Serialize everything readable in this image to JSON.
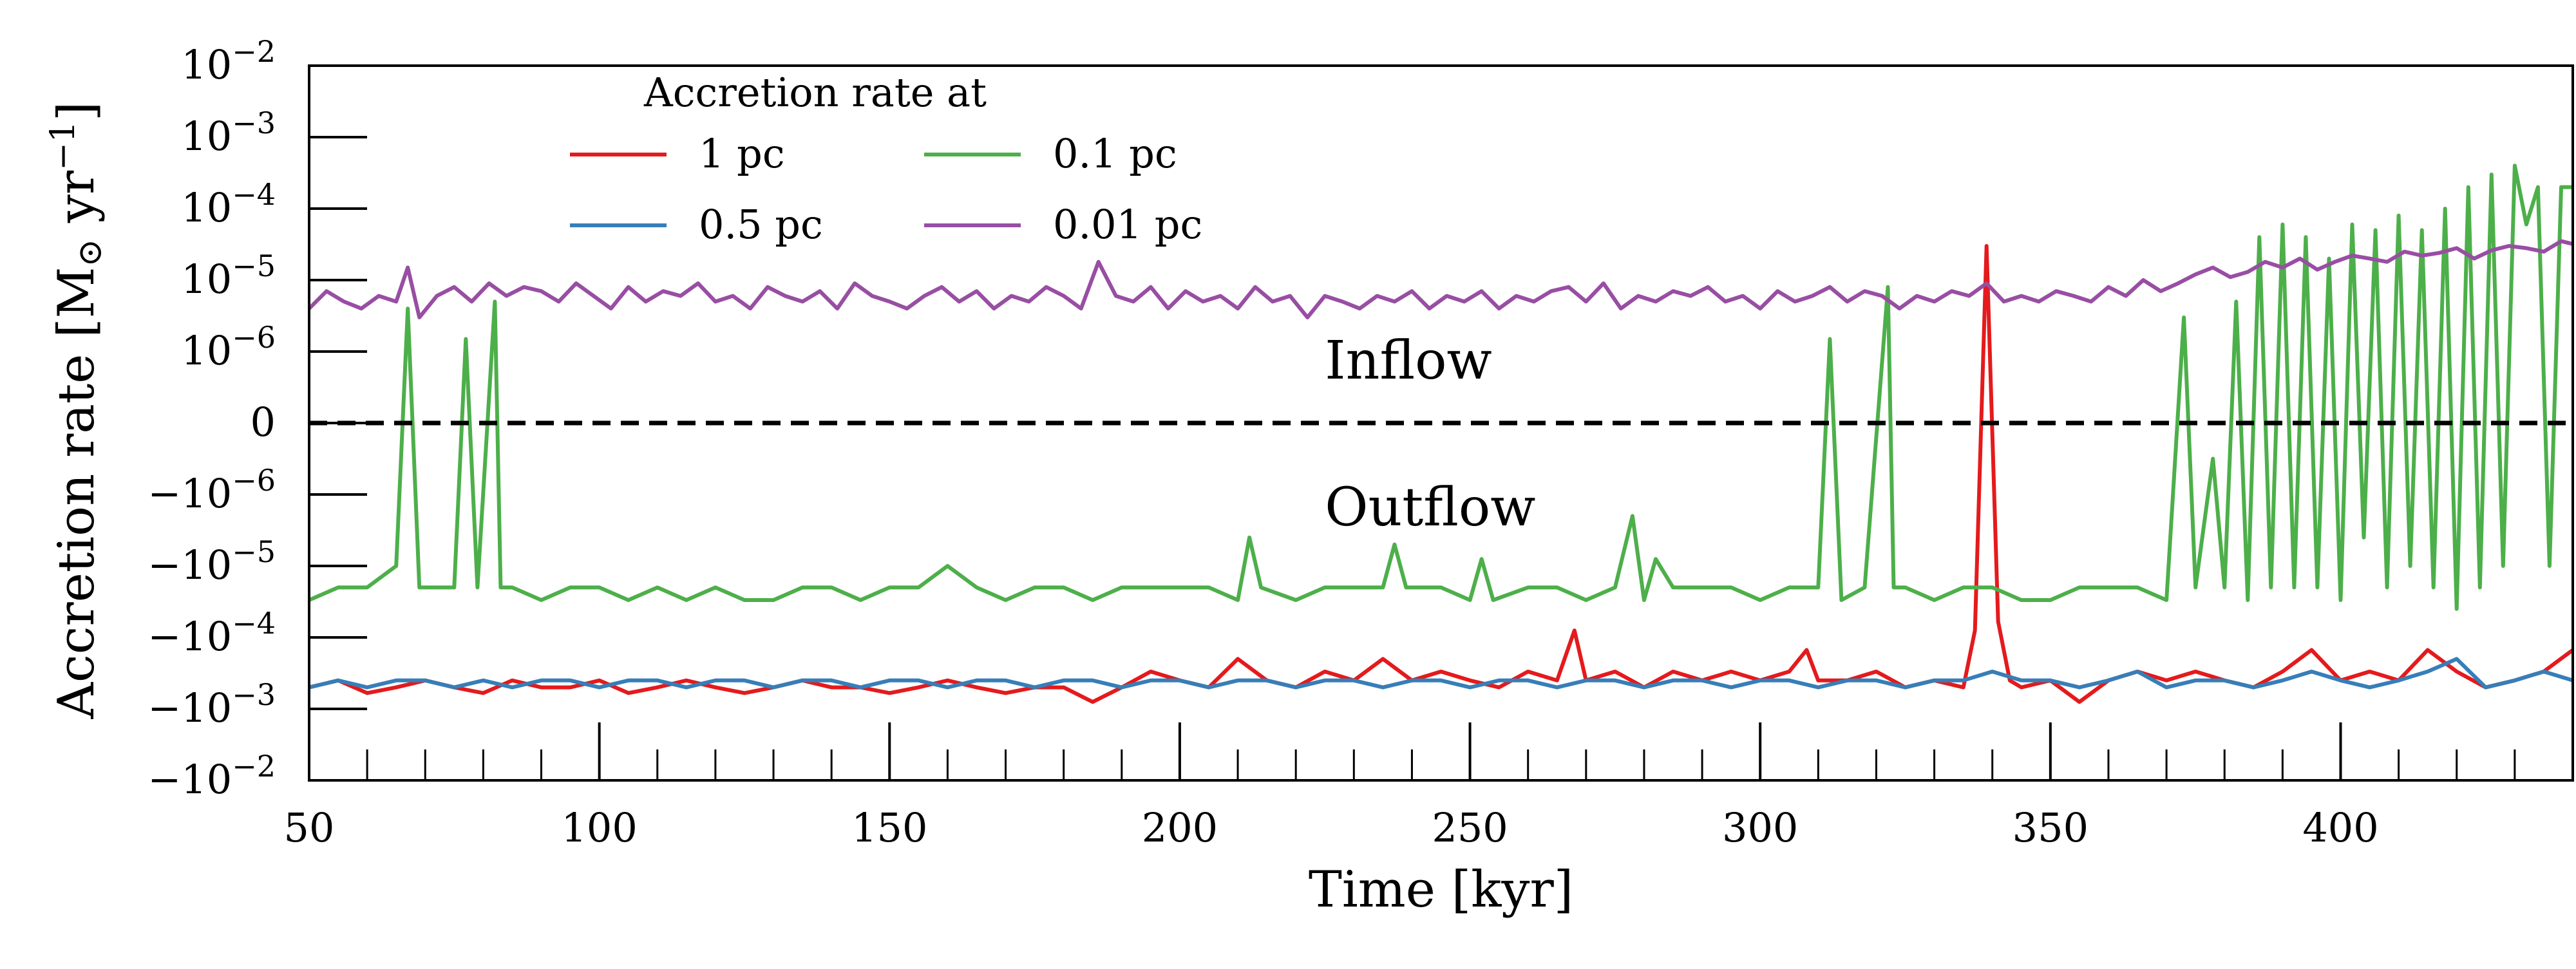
{
  "chart_data": {
    "type": "line",
    "title": "",
    "xlabel": "Time [kyr]",
    "ylabel_text": "Accretion rate [M",
    "ylabel_sub": "⊙",
    "ylabel_unit": " yr",
    "ylabel_exp": "−1",
    "ylabel_close": "]",
    "xlim": [
      50,
      440
    ],
    "x_ticks": [
      {
        "value": 50,
        "label": "50"
      },
      {
        "value": 100,
        "label": "100"
      },
      {
        "value": 150,
        "label": "150"
      },
      {
        "value": 200,
        "label": "200"
      },
      {
        "value": 250,
        "label": "250"
      },
      {
        "value": 300,
        "label": "300"
      },
      {
        "value": 350,
        "label": "350"
      },
      {
        "value": 400,
        "label": "400"
      }
    ],
    "y_scale": "symlog",
    "y_linthresh": 1e-06,
    "ylim": [
      -0.01,
      0.01
    ],
    "y_ticks": [
      {
        "value": 0.01,
        "base": "10",
        "exp": "−2",
        "sign": ""
      },
      {
        "value": 0.001,
        "base": "10",
        "exp": "−3",
        "sign": ""
      },
      {
        "value": 0.0001,
        "base": "10",
        "exp": "−4",
        "sign": ""
      },
      {
        "value": 1e-05,
        "base": "10",
        "exp": "−5",
        "sign": ""
      },
      {
        "value": 1e-06,
        "base": "10",
        "exp": "−6",
        "sign": ""
      },
      {
        "value": 0,
        "base": "0",
        "exp": "",
        "sign": ""
      },
      {
        "value": -1e-06,
        "base": "10",
        "exp": "−6",
        "sign": "−"
      },
      {
        "value": -1e-05,
        "base": "10",
        "exp": "−5",
        "sign": "−"
      },
      {
        "value": -0.0001,
        "base": "10",
        "exp": "−4",
        "sign": "−"
      },
      {
        "value": -0.001,
        "base": "10",
        "exp": "−3",
        "sign": "−"
      },
      {
        "value": -0.01,
        "base": "10",
        "exp": "−2",
        "sign": "−"
      }
    ],
    "annotations": {
      "inflow": "Inflow",
      "outflow": "Outflow"
    },
    "annotation_x": 225,
    "annotation_inflow_y": 8e-07,
    "annotation_outflow_y": -8e-07,
    "reference_line": {
      "y": 0,
      "style": "dashed",
      "color": "#000000"
    },
    "legend": {
      "title": "Accretion rate at",
      "placement": "top-left",
      "columns": 2
    },
    "series": [
      {
        "name": "1 pc",
        "color": "#e41a1c",
        "x": [
          50,
          55,
          60,
          65,
          70,
          75,
          80,
          85,
          90,
          95,
          100,
          105,
          110,
          115,
          120,
          125,
          130,
          135,
          140,
          145,
          150,
          155,
          160,
          165,
          170,
          175,
          180,
          185,
          190,
          195,
          200,
          205,
          210,
          215,
          220,
          225,
          230,
          235,
          240,
          245,
          250,
          255,
          260,
          265,
          268,
          270,
          275,
          280,
          285,
          290,
          295,
          300,
          305,
          308,
          310,
          315,
          320,
          325,
          330,
          335,
          337,
          339,
          341,
          343,
          345,
          350,
          355,
          360,
          365,
          370,
          375,
          380,
          385,
          390,
          395,
          400,
          405,
          410,
          415,
          420,
          425,
          430,
          435,
          440
        ],
        "values": [
          -0.0005,
          -0.0004,
          -0.0006,
          -0.0005,
          -0.0004,
          -0.0005,
          -0.0006,
          -0.0004,
          -0.0005,
          -0.0005,
          -0.0004,
          -0.0006,
          -0.0005,
          -0.0004,
          -0.0005,
          -0.0006,
          -0.0005,
          -0.0004,
          -0.0005,
          -0.0005,
          -0.0006,
          -0.0005,
          -0.0004,
          -0.0005,
          -0.0006,
          -0.0005,
          -0.0005,
          -0.0008,
          -0.0005,
          -0.0003,
          -0.0004,
          -0.0005,
          -0.0002,
          -0.0004,
          -0.0005,
          -0.0003,
          -0.0004,
          -0.0002,
          -0.0004,
          -0.0003,
          -0.0004,
          -0.0005,
          -0.0003,
          -0.0004,
          -8e-05,
          -0.0004,
          -0.0003,
          -0.0005,
          -0.0003,
          -0.0004,
          -0.0003,
          -0.0004,
          -0.0003,
          -0.00015,
          -0.0004,
          -0.0004,
          -0.0003,
          -0.0005,
          -0.0004,
          -0.0005,
          -8e-05,
          3e-05,
          -6e-05,
          -0.0004,
          -0.0005,
          -0.0004,
          -0.0008,
          -0.0004,
          -0.0003,
          -0.0004,
          -0.0003,
          -0.0004,
          -0.0005,
          -0.0003,
          -0.00015,
          -0.0004,
          -0.0003,
          -0.0004,
          -0.00015,
          -0.0003,
          -0.0005,
          -0.0004,
          -0.0003,
          -0.00015
        ]
      },
      {
        "name": "0.5 pc",
        "color": "#377eb8",
        "x": [
          50,
          55,
          60,
          65,
          70,
          75,
          80,
          85,
          90,
          95,
          100,
          105,
          110,
          115,
          120,
          125,
          130,
          135,
          140,
          145,
          150,
          155,
          160,
          165,
          170,
          175,
          180,
          185,
          190,
          195,
          200,
          205,
          210,
          215,
          220,
          225,
          230,
          235,
          240,
          245,
          250,
          255,
          260,
          265,
          270,
          275,
          280,
          285,
          290,
          295,
          300,
          305,
          310,
          315,
          320,
          325,
          330,
          335,
          340,
          345,
          350,
          355,
          360,
          365,
          370,
          375,
          380,
          385,
          390,
          395,
          400,
          405,
          410,
          415,
          420,
          425,
          430,
          435,
          440
        ],
        "values": [
          -0.0005,
          -0.0004,
          -0.0005,
          -0.0004,
          -0.0004,
          -0.0005,
          -0.0004,
          -0.0005,
          -0.0004,
          -0.0004,
          -0.0005,
          -0.0004,
          -0.0004,
          -0.0005,
          -0.0004,
          -0.0004,
          -0.0005,
          -0.0004,
          -0.0004,
          -0.0005,
          -0.0004,
          -0.0004,
          -0.0005,
          -0.0004,
          -0.0004,
          -0.0005,
          -0.0004,
          -0.0004,
          -0.0005,
          -0.0004,
          -0.0004,
          -0.0005,
          -0.0004,
          -0.0004,
          -0.0005,
          -0.0004,
          -0.0004,
          -0.0005,
          -0.0004,
          -0.0004,
          -0.0005,
          -0.0004,
          -0.0004,
          -0.0005,
          -0.0004,
          -0.0004,
          -0.0005,
          -0.0004,
          -0.0004,
          -0.0005,
          -0.0004,
          -0.0004,
          -0.0005,
          -0.0004,
          -0.0004,
          -0.0005,
          -0.0004,
          -0.0004,
          -0.0003,
          -0.0004,
          -0.0004,
          -0.0005,
          -0.0004,
          -0.0003,
          -0.0005,
          -0.0004,
          -0.0004,
          -0.0005,
          -0.0004,
          -0.0003,
          -0.0004,
          -0.0005,
          -0.0004,
          -0.0003,
          -0.0002,
          -0.0005,
          -0.0004,
          -0.0003,
          -0.0004
        ]
      },
      {
        "name": "0.1 pc",
        "color": "#4daf4a",
        "x": [
          50,
          55,
          60,
          65,
          67,
          69,
          75,
          77,
          79,
          82,
          83,
          85,
          90,
          95,
          100,
          105,
          110,
          115,
          120,
          125,
          130,
          135,
          140,
          145,
          150,
          155,
          160,
          165,
          170,
          175,
          180,
          185,
          190,
          195,
          200,
          205,
          210,
          212,
          214,
          220,
          225,
          230,
          235,
          237,
          239,
          245,
          250,
          252,
          254,
          260,
          265,
          270,
          275,
          278,
          280,
          282,
          285,
          290,
          295,
          300,
          305,
          310,
          312,
          314,
          318,
          322,
          323,
          325,
          330,
          335,
          340,
          345,
          350,
          355,
          360,
          365,
          370,
          373,
          375,
          378,
          380,
          382,
          384,
          386,
          388,
          390,
          392,
          394,
          396,
          398,
          400,
          402,
          404,
          406,
          408,
          410,
          412,
          414,
          416,
          418,
          420,
          422,
          424,
          426,
          428,
          430,
          432,
          434,
          436,
          438,
          440
        ],
        "values": [
          -3e-05,
          -2e-05,
          -2e-05,
          -1e-05,
          4e-06,
          -2e-05,
          -2e-05,
          1.5e-06,
          -2e-05,
          5e-06,
          -2e-05,
          -2e-05,
          -3e-05,
          -2e-05,
          -2e-05,
          -3e-05,
          -2e-05,
          -3e-05,
          -2e-05,
          -3e-05,
          -3e-05,
          -2e-05,
          -2e-05,
          -3e-05,
          -2e-05,
          -2e-05,
          -1e-05,
          -2e-05,
          -3e-05,
          -2e-05,
          -2e-05,
          -3e-05,
          -2e-05,
          -2e-05,
          -2e-05,
          -2e-05,
          -3e-05,
          -4e-06,
          -2e-05,
          -3e-05,
          -2e-05,
          -2e-05,
          -2e-05,
          -5e-06,
          -2e-05,
          -2e-05,
          -3e-05,
          -8e-06,
          -3e-05,
          -2e-05,
          -2e-05,
          -3e-05,
          -2e-05,
          -2e-06,
          -3e-05,
          -8e-06,
          -2e-05,
          -2e-05,
          -2e-05,
          -3e-05,
          -2e-05,
          -2e-05,
          1.5e-06,
          -3e-05,
          -2e-05,
          8e-06,
          -2e-05,
          -2e-05,
          -3e-05,
          -2e-05,
          -2e-05,
          -3e-05,
          -3e-05,
          -2e-05,
          -2e-05,
          -2e-05,
          -3e-05,
          3e-06,
          -2e-05,
          -5e-07,
          -2e-05,
          5e-06,
          -3e-05,
          4e-05,
          -2e-05,
          6e-05,
          -2e-05,
          4e-05,
          -2e-05,
          2e-05,
          -3e-05,
          6e-05,
          -4e-06,
          5e-05,
          -2e-05,
          8e-05,
          -1e-05,
          5e-05,
          -2e-05,
          0.0001,
          -4e-05,
          0.0002,
          -2e-05,
          0.0003,
          -1e-05,
          0.0004,
          6e-05,
          0.0002,
          -1e-05,
          0.0002,
          0.0002
        ]
      },
      {
        "name": "0.01 pc",
        "color": "#984ea3",
        "x": [
          50,
          53,
          56,
          59,
          62,
          65,
          67,
          69,
          72,
          75,
          78,
          81,
          84,
          87,
          90,
          93,
          96,
          99,
          102,
          105,
          108,
          111,
          114,
          117,
          120,
          123,
          126,
          129,
          132,
          135,
          138,
          141,
          144,
          147,
          150,
          153,
          156,
          159,
          162,
          165,
          168,
          171,
          174,
          177,
          180,
          183,
          186,
          189,
          192,
          195,
          198,
          201,
          204,
          207,
          210,
          213,
          216,
          219,
          222,
          225,
          228,
          231,
          234,
          237,
          240,
          243,
          246,
          249,
          252,
          255,
          258,
          261,
          264,
          267,
          270,
          273,
          276,
          279,
          282,
          285,
          288,
          291,
          294,
          297,
          300,
          303,
          306,
          309,
          312,
          315,
          318,
          321,
          324,
          327,
          330,
          333,
          336,
          339,
          342,
          345,
          348,
          351,
          354,
          357,
          360,
          363,
          366,
          369,
          372,
          375,
          378,
          381,
          384,
          387,
          390,
          393,
          396,
          399,
          402,
          405,
          408,
          411,
          414,
          417,
          420,
          423,
          426,
          429,
          432,
          435,
          438,
          440
        ],
        "values": [
          4e-06,
          7e-06,
          5e-06,
          4e-06,
          6e-06,
          5e-06,
          1.5e-05,
          3e-06,
          6e-06,
          8e-06,
          5e-06,
          9e-06,
          6e-06,
          8e-06,
          7e-06,
          5e-06,
          9e-06,
          6e-06,
          4e-06,
          8e-06,
          5e-06,
          7e-06,
          6e-06,
          9e-06,
          5e-06,
          6e-06,
          4e-06,
          8e-06,
          6e-06,
          5e-06,
          7e-06,
          4e-06,
          9e-06,
          6e-06,
          5e-06,
          4e-06,
          6e-06,
          8e-06,
          5e-06,
          7e-06,
          4e-06,
          6e-06,
          5e-06,
          8e-06,
          6e-06,
          4e-06,
          1.8e-05,
          6e-06,
          5e-06,
          8e-06,
          4e-06,
          7e-06,
          5e-06,
          6e-06,
          4e-06,
          8e-06,
          5e-06,
          6e-06,
          3e-06,
          6e-06,
          5e-06,
          4e-06,
          6e-06,
          5e-06,
          7e-06,
          4e-06,
          6e-06,
          5e-06,
          7e-06,
          4e-06,
          6e-06,
          5e-06,
          7e-06,
          8e-06,
          5e-06,
          9e-06,
          4e-06,
          6e-06,
          5e-06,
          7e-06,
          6e-06,
          8e-06,
          5e-06,
          6e-06,
          4e-06,
          7e-06,
          5e-06,
          6e-06,
          8e-06,
          5e-06,
          7e-06,
          6e-06,
          4e-06,
          6e-06,
          5e-06,
          7e-06,
          6e-06,
          9e-06,
          5e-06,
          6e-06,
          5e-06,
          7e-06,
          6e-06,
          5e-06,
          8e-06,
          6e-06,
          1e-05,
          7e-06,
          9e-06,
          1.2e-05,
          1.5e-05,
          1.1e-05,
          1.3e-05,
          1.8e-05,
          1.5e-05,
          2e-05,
          1.4e-05,
          1.8e-05,
          2.2e-05,
          2e-05,
          1.8e-05,
          2.5e-05,
          2.2e-05,
          2.4e-05,
          2.8e-05,
          2e-05,
          2.6e-05,
          3e-05,
          2.8e-05,
          2.5e-05,
          3.5e-05,
          3.2e-05
        ]
      }
    ]
  }
}
